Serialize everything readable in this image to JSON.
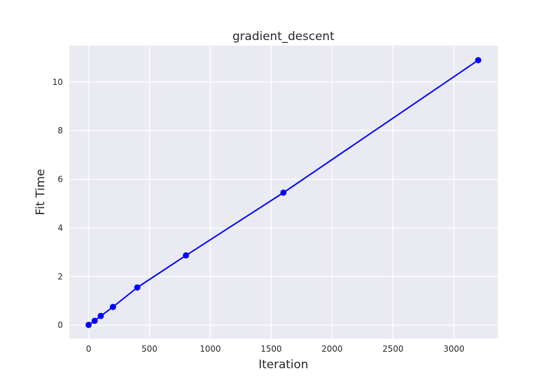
{
  "chart_data": {
    "type": "line",
    "title": "gradient_descent",
    "xlabel": "Iteration",
    "ylabel": "Fit Time",
    "x": [
      0,
      50,
      100,
      200,
      400,
      800,
      1600,
      3200
    ],
    "series": [
      {
        "values": [
          0.01,
          0.18,
          0.38,
          0.75,
          1.55,
          2.87,
          5.45,
          10.9
        ],
        "color": "#0000ff",
        "marker": "circle"
      }
    ],
    "xlim": [
      -160,
      3360
    ],
    "ylim": [
      -0.55,
      11.5
    ],
    "xticks": [
      0,
      500,
      1000,
      1500,
      2000,
      2500,
      3000
    ],
    "xtick_labels": [
      "0",
      "500",
      "1000",
      "1500",
      "2000",
      "2500",
      "3000"
    ],
    "yticks": [
      0,
      2,
      4,
      6,
      8,
      10
    ],
    "ytick_labels": [
      "0",
      "2",
      "4",
      "6",
      "8",
      "10"
    ],
    "grid": true,
    "background_color": "#eaeaf2",
    "grid_color": "#ffffff"
  }
}
